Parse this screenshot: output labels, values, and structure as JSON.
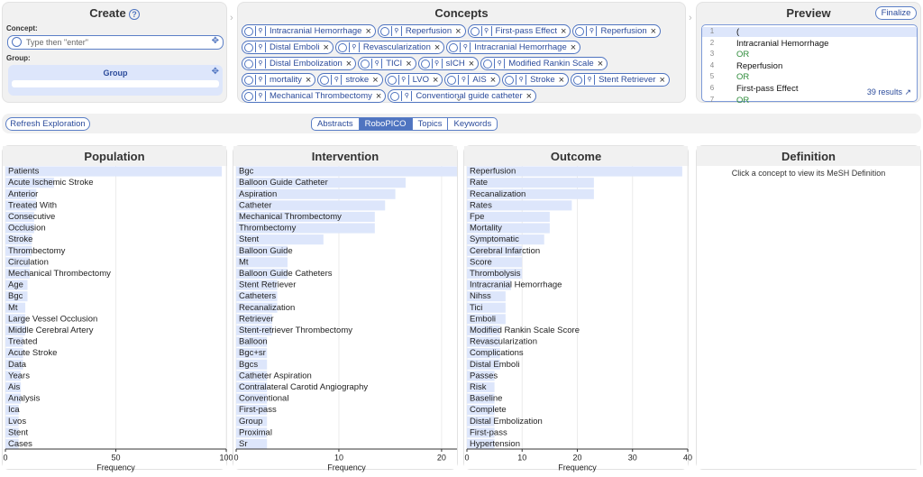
{
  "create": {
    "title": "Create",
    "concept_label": "Concept:",
    "placeholder": "Type then \"enter\"",
    "group_label": "Group:",
    "group_name": "Group"
  },
  "concepts": {
    "title": "Concepts",
    "chips": [
      "Intracranial Hemorrhage",
      "Reperfusion",
      "First-pass Effect",
      "Reperfusion",
      "Distal Emboli",
      "Revascularization",
      "Intracranial Hemorrhage",
      "Distal Embolization",
      "TICI",
      "sICH",
      "Modified Rankin Scale",
      "mortality",
      "stroke",
      "LVO",
      "AIS",
      "Stroke",
      "Stent Retriever",
      "Mechanical Thrombectomy",
      "Conventional guide catheter"
    ]
  },
  "preview": {
    "title": "Preview",
    "finalize": "Finalize",
    "line_numbers": [
      1,
      2,
      3,
      4,
      5,
      6,
      7
    ],
    "lines": [
      "(",
      "Intracranial Hemorrhage",
      "OR",
      "Reperfusion",
      "OR",
      "First-pass Effect",
      "OR"
    ],
    "results": "39 results"
  },
  "toolbar": {
    "refresh": "Refresh Exploration",
    "tabs": [
      "Abstracts",
      "RoboPICO",
      "Topics",
      "Keywords"
    ],
    "active_tab": 1
  },
  "definition": {
    "title": "Definition",
    "text": "Click a concept to view its MeSH Definition"
  },
  "chart_data": [
    {
      "type": "bar",
      "orientation": "horizontal",
      "title": "Population",
      "xlabel": "Frequency",
      "color": "#dde6fb",
      "grid": true,
      "categories": [
        "Patients",
        "Acute Ischemic Stroke",
        "Anterior",
        "Treated With",
        "Consecutive",
        "Occlusion",
        "Stroke",
        "Thrombectomy",
        "Circulation",
        "Mechanical Thrombectomy",
        "Age",
        "Bgc",
        "Mt",
        "Large Vessel Occlusion",
        "Middle Cerebral Artery",
        "Treated",
        "Acute Stroke",
        "Data",
        "Years",
        "Ais",
        "Analysis",
        "Ica",
        "Lvos",
        "Stent",
        "Cases"
      ],
      "values": [
        98,
        22,
        14,
        14,
        13,
        13,
        12,
        12,
        11,
        11,
        10,
        10,
        9,
        9,
        9,
        8,
        8,
        8,
        7,
        7,
        7,
        6,
        6,
        6,
        6
      ],
      "xlim": [
        0,
        100
      ],
      "xticks": [
        0,
        50,
        100
      ]
    },
    {
      "type": "bar",
      "orientation": "horizontal",
      "title": "Intervention",
      "xlabel": "Frequency",
      "color": "#dde6fb",
      "grid": true,
      "categories": [
        "Bgc",
        "Balloon Guide Catheter",
        "Aspiration",
        "Catheter",
        "Mechanical Thrombectomy",
        "Thrombectomy",
        "Stent",
        "Balloon Guide",
        "Mt",
        "Balloon Guide Catheters",
        "Stent Retriever",
        "Catheters",
        "Recanalization",
        "Retriever",
        "Stent-retriever Thrombectomy",
        "Balloon",
        "Bgc+sr",
        "Bgcs",
        "Catheter Aspiration",
        "Contralateral Carotid Angiography",
        "Conventional",
        "First-pass",
        "Group",
        "Proximal",
        "Sr"
      ],
      "values": [
        21.5,
        16.5,
        15.5,
        14.5,
        13.5,
        13.5,
        8.5,
        5,
        5,
        5,
        4,
        4,
        4,
        3.5,
        3.5,
        3,
        3,
        3,
        3,
        3,
        3,
        3,
        3,
        3,
        3
      ],
      "xlim": [
        0,
        21.5
      ],
      "xticks": [
        0,
        10,
        20
      ]
    },
    {
      "type": "bar",
      "orientation": "horizontal",
      "title": "Outcome",
      "xlabel": "Frequency",
      "color": "#dde6fb",
      "grid": true,
      "categories": [
        "Reperfusion",
        "Rate",
        "Recanalization",
        "Rates",
        "Fpe",
        "Mortality",
        "Symptomatic",
        "Cerebral Infarction",
        "Score",
        "Thrombolysis",
        "Intracranial Hemorrhage",
        "Nihss",
        "Tici",
        "Emboli",
        "Modified Rankin Scale Score",
        "Revascularization",
        "Complications",
        "Distal Emboli",
        "Passes",
        "Risk",
        "Baseline",
        "Complete",
        "Distal Embolization",
        "First-pass",
        "Hypertension"
      ],
      "values": [
        39,
        23,
        23,
        19,
        15,
        15,
        14,
        10,
        10,
        10,
        8,
        7,
        7,
        7,
        6,
        6,
        6,
        6,
        5,
        5,
        5,
        5,
        5,
        5,
        5
      ],
      "xlim": [
        0,
        40
      ],
      "xticks": [
        0,
        10,
        20,
        30,
        40
      ]
    }
  ]
}
